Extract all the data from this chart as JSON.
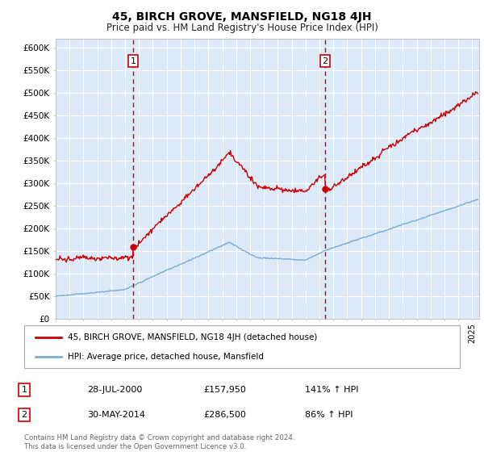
{
  "title": "45, BIRCH GROVE, MANSFIELD, NG18 4JH",
  "subtitle": "Price paid vs. HM Land Registry's House Price Index (HPI)",
  "ylim": [
    0,
    620000
  ],
  "yticks": [
    0,
    50000,
    100000,
    150000,
    200000,
    250000,
    300000,
    350000,
    400000,
    450000,
    500000,
    550000,
    600000
  ],
  "ytick_labels": [
    "£0",
    "£50K",
    "£100K",
    "£150K",
    "£200K",
    "£250K",
    "£300K",
    "£350K",
    "£400K",
    "£450K",
    "£500K",
    "£550K",
    "£600K"
  ],
  "xlim_start": 1995.0,
  "xlim_end": 2025.5,
  "background_color": "#dce9f8",
  "grid_color": "#ffffff",
  "red_line_color": "#cc0000",
  "blue_line_color": "#7aadd4",
  "vline_color": "#cc0000",
  "sale1_x": 2000.57,
  "sale1_y": 157950,
  "sale2_x": 2014.41,
  "sale2_y": 286500,
  "legend_label_red": "45, BIRCH GROVE, MANSFIELD, NG18 4JH (detached house)",
  "legend_label_blue": "HPI: Average price, detached house, Mansfield",
  "footer_line1": "Contains HM Land Registry data © Crown copyright and database right 2024.",
  "footer_line2": "This data is licensed under the Open Government Licence v3.0.",
  "sale_info": [
    {
      "num": "1",
      "date": "28-JUL-2000",
      "price": "£157,950",
      "hpi": "141% ↑ HPI"
    },
    {
      "num": "2",
      "date": "30-MAY-2014",
      "price": "£286,500",
      "hpi": "86% ↑ HPI"
    }
  ]
}
